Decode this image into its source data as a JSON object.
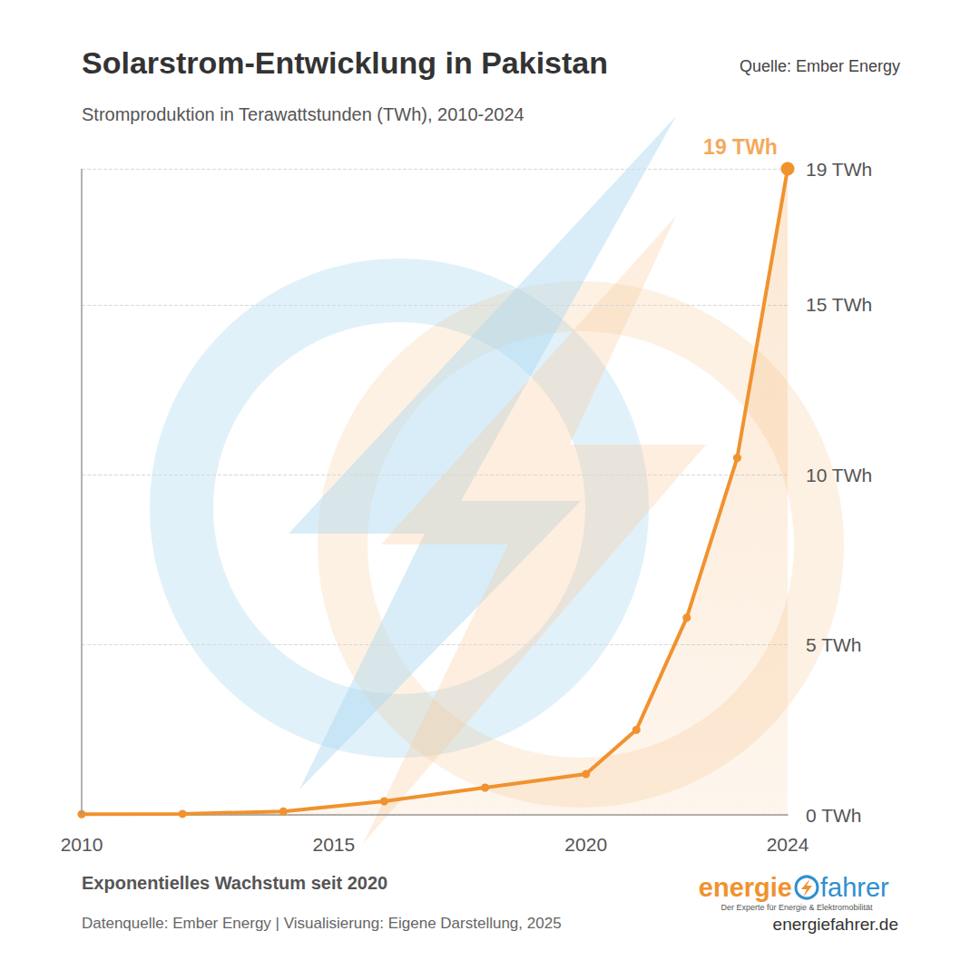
{
  "chart_data": {
    "type": "line",
    "title": "Solarstrom-Entwicklung in Pakistan",
    "subtitle": "Stromproduktion in Terawattstunden (TWh), 2010-2024",
    "source": "Quelle: Ember Energy",
    "x": [
      2010,
      2012,
      2014,
      2016,
      2018,
      2020,
      2021,
      2022,
      2023,
      2024
    ],
    "values": [
      0.02,
      0.03,
      0.1,
      0.4,
      0.8,
      1.2,
      2.5,
      5.8,
      10.5,
      19
    ],
    "color": "#f0922e",
    "marker": "circle",
    "xlim": [
      2010,
      2024
    ],
    "xticks": [
      2010,
      2015,
      2020,
      2024
    ],
    "ylim": [
      0,
      19
    ],
    "yticks": [
      {
        "value": 0,
        "label": "0 TWh"
      },
      {
        "value": 5,
        "label": "5 TWh"
      },
      {
        "value": 10,
        "label": "10 TWh"
      },
      {
        "value": 15,
        "label": "15 TWh"
      },
      {
        "value": 19,
        "label": "19 TWh"
      }
    ],
    "grid": true,
    "annotations": [
      {
        "text": "19 TWh",
        "x": 2024,
        "y": 19
      }
    ],
    "footer": {
      "headline": "Exponentielles Wachstum seit 2020",
      "credit": "Datenquelle: Ember Energy | Visualisierung: Eigene Darstellung, 2025"
    },
    "logo": {
      "part1": "energie",
      "part2": "fahrer",
      "tagline": "Der Experte für Energie & Elektromobilität",
      "url": "energiefahrer.de"
    }
  }
}
